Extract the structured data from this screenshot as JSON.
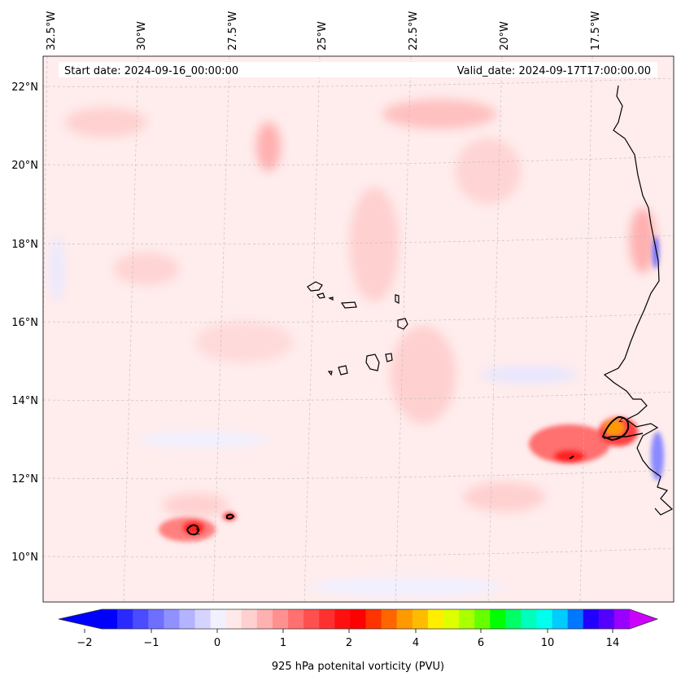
{
  "stamps": {
    "start": "Start date: 2024-09-16_00:00:00",
    "valid": "Valid_date: 2024-09-17T17:00:00.00"
  },
  "lon_labels": [
    "32.5°W",
    "30°W",
    "27.5°W",
    "25°W",
    "22.5°W",
    "20°W",
    "17.5°W"
  ],
  "lat_labels": [
    "22°N",
    "20°N",
    "18°N",
    "16°N",
    "14°N",
    "12°N",
    "10°N"
  ],
  "colorbar": {
    "title": "925 hPa potenital vorticity (PVU)",
    "tick_labels": [
      "−2",
      "−1",
      "0",
      "1",
      "2",
      "4",
      "6",
      "10",
      "14"
    ],
    "colors": [
      "#0000ff",
      "#2a2aff",
      "#4b4bff",
      "#6e6eff",
      "#9090ff",
      "#b3b3ff",
      "#d4d4ff",
      "#f0f0ff",
      "#ffe8e8",
      "#ffd0d0",
      "#ffb0b0",
      "#ff9090",
      "#ff7070",
      "#ff5050",
      "#ff3030",
      "#ff1010",
      "#ff0000",
      "#ff3300",
      "#ff6600",
      "#ff9900",
      "#ffbb00",
      "#ffee00",
      "#ddff00",
      "#aaff00",
      "#66ff00",
      "#00ff00",
      "#00ff66",
      "#00ffbb",
      "#00ffee",
      "#00ccff",
      "#0077ff",
      "#2200ff",
      "#5500ff",
      "#9900ff"
    ],
    "extend_low": "#0000ff",
    "extend_high": "#cc00ff"
  }
}
